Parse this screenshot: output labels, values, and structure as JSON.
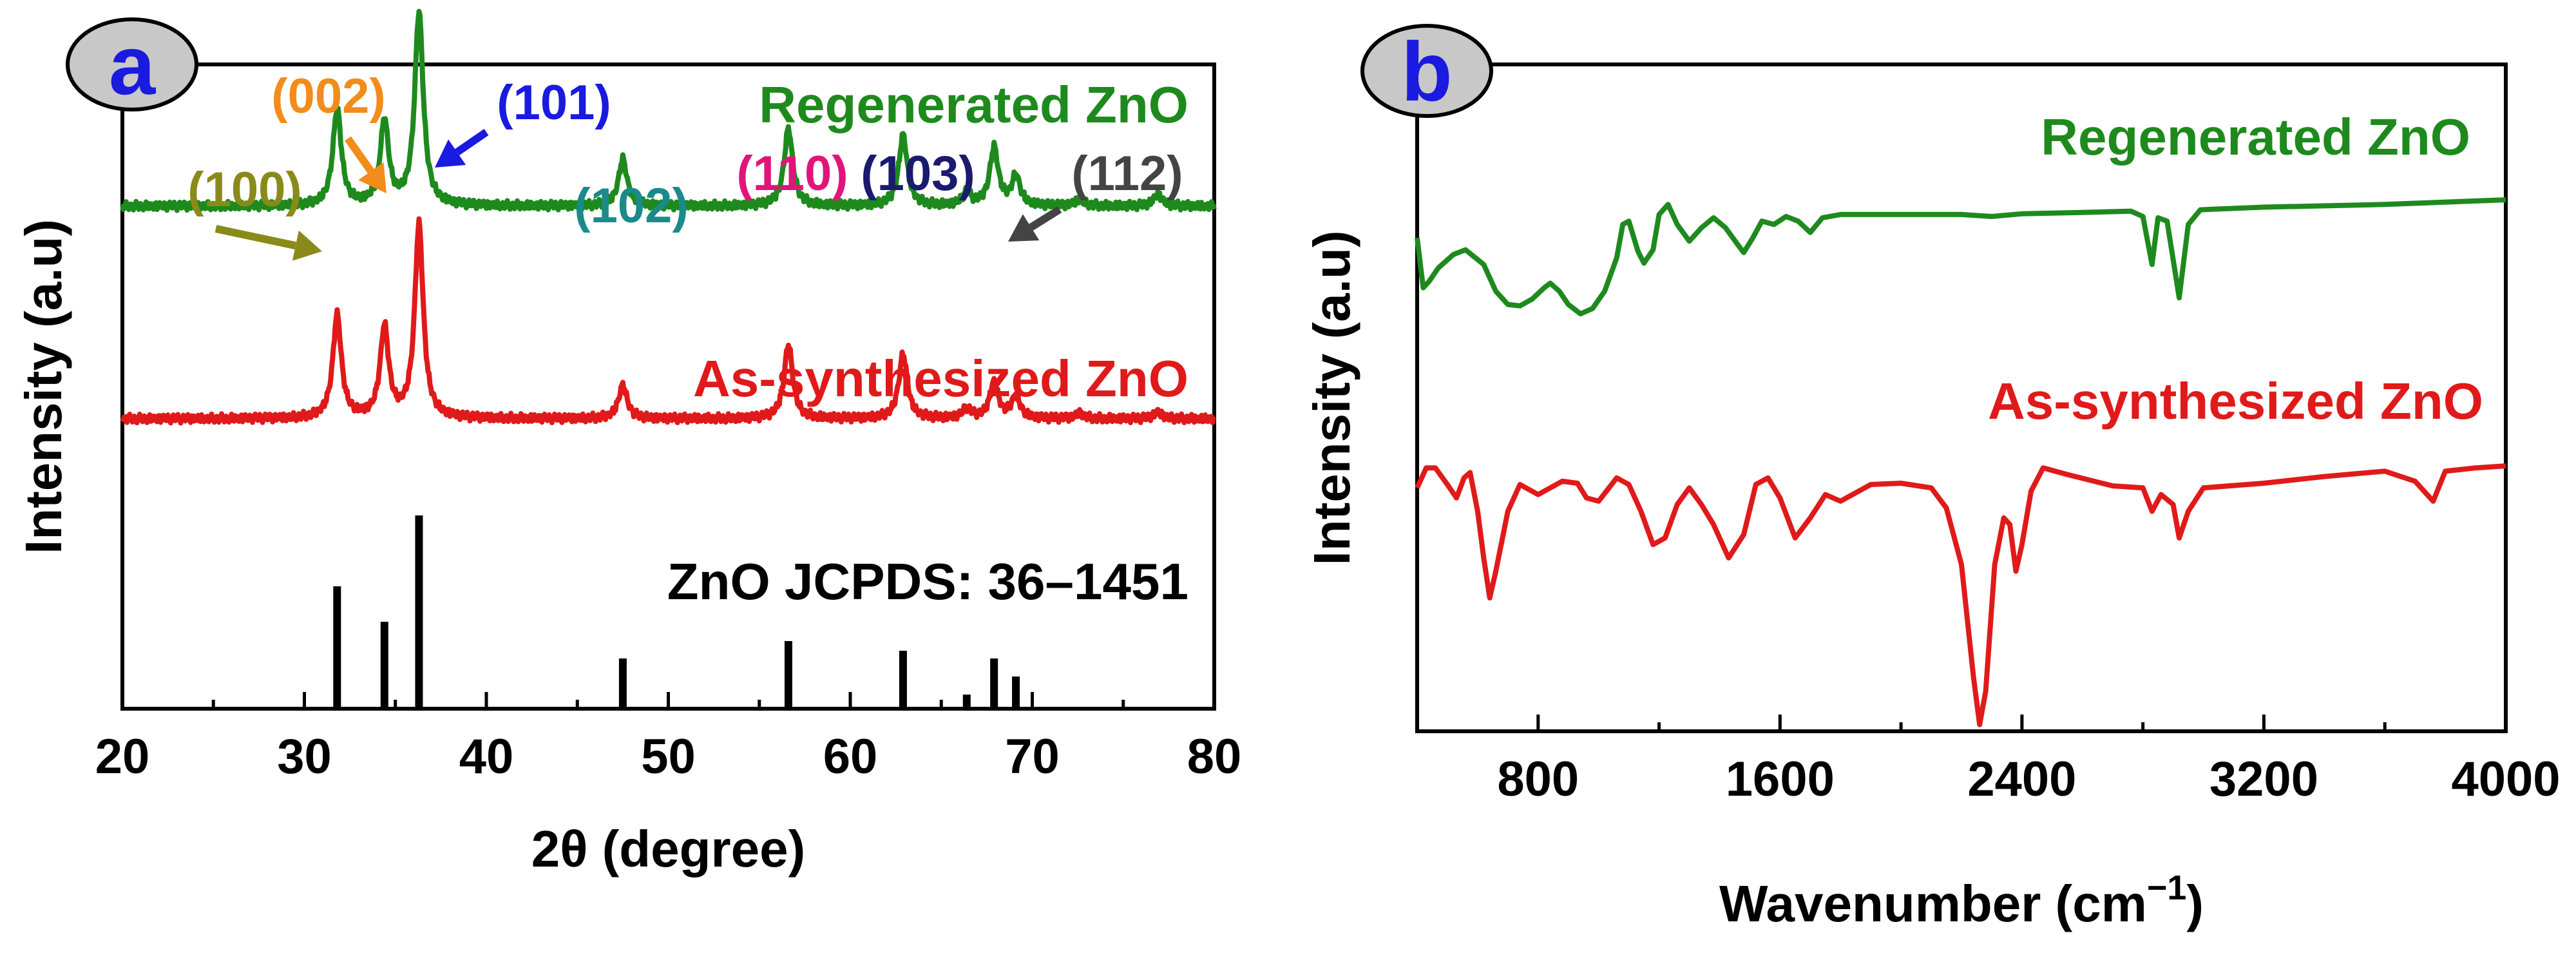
{
  "chart_data": [
    {
      "panel_label": "a",
      "type": "line",
      "xlabel": "2θ (degree)",
      "ylabel": "Intensity (a.u)",
      "xlim": [
        20,
        80
      ],
      "x_ticks": [
        20,
        30,
        40,
        50,
        60,
        70,
        80
      ],
      "series": [
        {
          "name": "Regenerated ZnO",
          "color": "#1e8a1e",
          "baseline": 0.78,
          "peaks": [
            {
              "x": 31.8,
              "h": 0.15
            },
            {
              "x": 34.4,
              "h": 0.13
            },
            {
              "x": 36.3,
              "h": 0.3
            },
            {
              "x": 47.5,
              "h": 0.073
            },
            {
              "x": 56.6,
              "h": 0.12
            },
            {
              "x": 62.9,
              "h": 0.11
            },
            {
              "x": 66.4,
              "h": 0.02
            },
            {
              "x": 67.9,
              "h": 0.09
            },
            {
              "x": 69.1,
              "h": 0.045
            },
            {
              "x": 72.6,
              "h": 0.01
            },
            {
              "x": 76.9,
              "h": 0.018
            }
          ]
        },
        {
          "name": "As-synthesized ZnO",
          "color": "#e01a1a",
          "baseline": 0.45,
          "peaks": [
            {
              "x": 31.8,
              "h": 0.16
            },
            {
              "x": 34.4,
              "h": 0.14
            },
            {
              "x": 36.3,
              "h": 0.3
            },
            {
              "x": 47.5,
              "h": 0.052
            },
            {
              "x": 56.6,
              "h": 0.115
            },
            {
              "x": 62.9,
              "h": 0.1
            },
            {
              "x": 66.4,
              "h": 0.015
            },
            {
              "x": 67.9,
              "h": 0.055
            },
            {
              "x": 69.1,
              "h": 0.035
            },
            {
              "x": 72.6,
              "h": 0.008
            },
            {
              "x": 76.9,
              "h": 0.01
            }
          ]
        }
      ],
      "reference": {
        "name": "ZnO JCPDS: 36–1451",
        "color": "#000000",
        "lines": [
          {
            "x": 31.8,
            "h": 0.19
          },
          {
            "x": 34.4,
            "h": 0.135
          },
          {
            "x": 36.3,
            "h": 0.3
          },
          {
            "x": 47.5,
            "h": 0.078
          },
          {
            "x": 56.6,
            "h": 0.105
          },
          {
            "x": 62.9,
            "h": 0.09
          },
          {
            "x": 66.4,
            "h": 0.022
          },
          {
            "x": 67.9,
            "h": 0.078
          },
          {
            "x": 69.1,
            "h": 0.05
          }
        ]
      },
      "annotations": [
        {
          "label": "(100)",
          "color": "#8a8a1a",
          "x": 31.8,
          "arrow": true
        },
        {
          "label": "(002)",
          "color": "#f28c1a",
          "x": 34.4,
          "arrow": true
        },
        {
          "label": "(101)",
          "color": "#1a1ae0",
          "x": 36.3,
          "arrow": true
        },
        {
          "label": "(102)",
          "color": "#1a8a8a",
          "x": 47.5,
          "arrow": false
        },
        {
          "label": "(110)",
          "color": "#e0157a",
          "x": 56.6,
          "arrow": false
        },
        {
          "label": "(103)",
          "color": "#1a1a6e",
          "x": 62.9,
          "arrow": false
        },
        {
          "label": "(112)",
          "color": "#444444",
          "x": 67.9,
          "arrow": true
        }
      ]
    },
    {
      "panel_label": "b",
      "type": "line",
      "xlabel": "Wavenumber (cm",
      "xlabel_sup": "−1",
      "xlabel_end": ")",
      "ylabel": "Intensity (a.u)",
      "xlim": [
        400,
        4000
      ],
      "x_ticks": [
        800,
        1600,
        2400,
        3200,
        4000
      ],
      "series": [
        {
          "name": "Regenerated ZnO",
          "color": "#1e8a1e",
          "points": [
            [
              400,
              0.74
            ],
            [
              420,
              0.665
            ],
            [
              440,
              0.675
            ],
            [
              470,
              0.695
            ],
            [
              520,
              0.715
            ],
            [
              560,
              0.722
            ],
            [
              620,
              0.7
            ],
            [
              660,
              0.66
            ],
            [
              700,
              0.64
            ],
            [
              740,
              0.638
            ],
            [
              780,
              0.648
            ],
            [
              820,
              0.665
            ],
            [
              840,
              0.672
            ],
            [
              870,
              0.66
            ],
            [
              900,
              0.64
            ],
            [
              940,
              0.626
            ],
            [
              980,
              0.634
            ],
            [
              1020,
              0.66
            ],
            [
              1060,
              0.71
            ],
            [
              1080,
              0.76
            ],
            [
              1100,
              0.765
            ],
            [
              1130,
              0.72
            ],
            [
              1150,
              0.702
            ],
            [
              1180,
              0.722
            ],
            [
              1200,
              0.775
            ],
            [
              1230,
              0.79
            ],
            [
              1260,
              0.76
            ],
            [
              1300,
              0.735
            ],
            [
              1340,
              0.755
            ],
            [
              1380,
              0.77
            ],
            [
              1420,
              0.755
            ],
            [
              1460,
              0.73
            ],
            [
              1480,
              0.718
            ],
            [
              1510,
              0.74
            ],
            [
              1540,
              0.765
            ],
            [
              1580,
              0.76
            ],
            [
              1620,
              0.772
            ],
            [
              1660,
              0.765
            ],
            [
              1700,
              0.748
            ],
            [
              1740,
              0.77
            ],
            [
              1800,
              0.775
            ],
            [
              2000,
              0.775
            ],
            [
              2200,
              0.775
            ],
            [
              2300,
              0.772
            ],
            [
              2400,
              0.776
            ],
            [
              2600,
              0.778
            ],
            [
              2760,
              0.78
            ],
            [
              2800,
              0.772
            ],
            [
              2830,
              0.7
            ],
            [
              2850,
              0.77
            ],
            [
              2880,
              0.765
            ],
            [
              2920,
              0.65
            ],
            [
              2950,
              0.76
            ],
            [
              2990,
              0.782
            ],
            [
              3200,
              0.786
            ],
            [
              3600,
              0.79
            ],
            [
              4000,
              0.797
            ]
          ]
        },
        {
          "name": "As-synthesized ZnO",
          "color": "#e01a1a",
          "points": [
            [
              400,
              0.365
            ],
            [
              430,
              0.395
            ],
            [
              460,
              0.395
            ],
            [
              500,
              0.37
            ],
            [
              530,
              0.35
            ],
            [
              555,
              0.38
            ],
            [
              575,
              0.388
            ],
            [
              600,
              0.33
            ],
            [
              620,
              0.26
            ],
            [
              640,
              0.2
            ],
            [
              660,
              0.24
            ],
            [
              700,
              0.33
            ],
            [
              740,
              0.37
            ],
            [
              800,
              0.355
            ],
            [
              880,
              0.375
            ],
            [
              930,
              0.372
            ],
            [
              960,
              0.35
            ],
            [
              1000,
              0.345
            ],
            [
              1060,
              0.38
            ],
            [
              1100,
              0.37
            ],
            [
              1140,
              0.33
            ],
            [
              1180,
              0.28
            ],
            [
              1220,
              0.29
            ],
            [
              1260,
              0.34
            ],
            [
              1300,
              0.365
            ],
            [
              1340,
              0.34
            ],
            [
              1380,
              0.31
            ],
            [
              1430,
              0.26
            ],
            [
              1480,
              0.295
            ],
            [
              1520,
              0.37
            ],
            [
              1560,
              0.38
            ],
            [
              1600,
              0.35
            ],
            [
              1650,
              0.29
            ],
            [
              1700,
              0.32
            ],
            [
              1750,
              0.355
            ],
            [
              1800,
              0.345
            ],
            [
              1900,
              0.37
            ],
            [
              2000,
              0.372
            ],
            [
              2100,
              0.365
            ],
            [
              2150,
              0.335
            ],
            [
              2200,
              0.25
            ],
            [
              2240,
              0.08
            ],
            [
              2260,
              0.01
            ],
            [
              2280,
              0.06
            ],
            [
              2310,
              0.25
            ],
            [
              2340,
              0.32
            ],
            [
              2360,
              0.31
            ],
            [
              2380,
              0.24
            ],
            [
              2400,
              0.28
            ],
            [
              2430,
              0.36
            ],
            [
              2470,
              0.395
            ],
            [
              2550,
              0.385
            ],
            [
              2700,
              0.368
            ],
            [
              2800,
              0.365
            ],
            [
              2830,
              0.33
            ],
            [
              2860,
              0.355
            ],
            [
              2900,
              0.34
            ],
            [
              2920,
              0.29
            ],
            [
              2950,
              0.33
            ],
            [
              3000,
              0.365
            ],
            [
              3200,
              0.372
            ],
            [
              3400,
              0.382
            ],
            [
              3600,
              0.39
            ],
            [
              3700,
              0.375
            ],
            [
              3760,
              0.345
            ],
            [
              3800,
              0.39
            ],
            [
              3900,
              0.395
            ],
            [
              4000,
              0.398
            ]
          ]
        }
      ]
    }
  ]
}
